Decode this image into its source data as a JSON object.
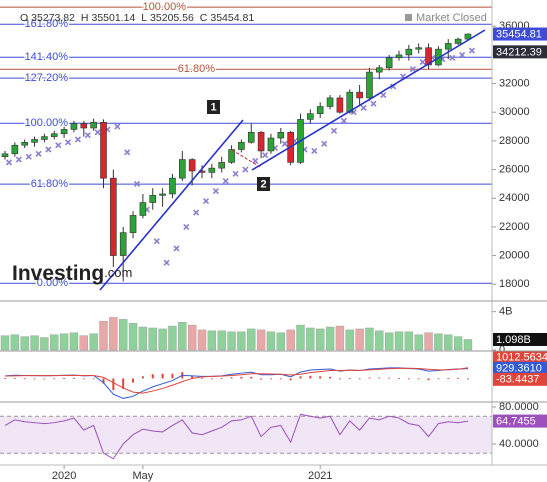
{
  "chart_data": [
    {
      "type": "candlestick",
      "ohlc_labels": [
        "O",
        "H",
        "L",
        "C"
      ],
      "ohlc": [
        35273.82,
        35501.14,
        35205.56,
        35454.81
      ],
      "status": "Market Closed",
      "watermark": [
        "Investing",
        ".com"
      ],
      "categories": [
        null,
        null,
        null,
        null,
        null,
        null,
        "2020",
        null,
        null,
        null,
        null,
        null,
        null,
        null,
        "May",
        null,
        null,
        null,
        null,
        null,
        null,
        null,
        null,
        null,
        null,
        null,
        null,
        null,
        null,
        null,
        null,
        null,
        "2021",
        null,
        null,
        null,
        null,
        null,
        null,
        null,
        null,
        null,
        null,
        null,
        null,
        null,
        null,
        null
      ],
      "open": [
        26900,
        27100,
        27700,
        27900,
        28100,
        28300,
        28500,
        28800,
        29200,
        28900,
        29300,
        25400,
        20000,
        21600,
        22800,
        23700,
        24200,
        24300,
        25400,
        26700,
        25900,
        25800,
        26100,
        26500,
        27400,
        27900,
        28600,
        27300,
        28200,
        28600,
        26500,
        29500,
        29900,
        30400,
        31000,
        30000,
        31400,
        31000,
        32800,
        33100,
        33800,
        34000,
        34400,
        34500,
        33300,
        34400,
        34800,
        35100
      ],
      "high": [
        27300,
        27900,
        28100,
        28300,
        28500,
        28700,
        29000,
        29400,
        29400,
        29550,
        29500,
        26000,
        22000,
        23100,
        24300,
        24700,
        24700,
        25700,
        27300,
        26800,
        26300,
        26400,
        26900,
        27700,
        28100,
        29200,
        28700,
        28500,
        28900,
        28700,
        29900,
        30200,
        30700,
        31200,
        31200,
        31600,
        31900,
        33100,
        33300,
        34000,
        34300,
        34700,
        34800,
        34800,
        34600,
        35100,
        35200,
        35501.14
      ],
      "low": [
        26700,
        26900,
        27500,
        27600,
        27900,
        28100,
        28200,
        28600,
        28300,
        28700,
        24700,
        19200,
        18200,
        21200,
        22600,
        23200,
        23400,
        24000,
        25200,
        24900,
        25400,
        25400,
        25800,
        26400,
        27200,
        27800,
        26800,
        27100,
        27800,
        26300,
        26400,
        29200,
        29600,
        30200,
        29900,
        29900,
        30500,
        30800,
        32300,
        32900,
        33600,
        33600,
        34100,
        33000,
        33200,
        33700,
        34700,
        35000
      ],
      "close": [
        27100,
        27700,
        27900,
        28100,
        28300,
        28500,
        28800,
        29200,
        28900,
        29300,
        25400,
        20000,
        21600,
        22800,
        23700,
        24200,
        24300,
        25400,
        26700,
        25900,
        25800,
        26100,
        26500,
        27400,
        27900,
        28600,
        27300,
        28200,
        28600,
        26500,
        29500,
        29900,
        30400,
        31000,
        30000,
        31400,
        31000,
        32800,
        33100,
        33800,
        34000,
        34400,
        34500,
        33300,
        34400,
        34800,
        35100,
        35454.81
      ],
      "up_color": "#2ba338",
      "down_color": "#d8262f",
      "overlay": {
        "color": "#8a7fd0",
        "values": [
          26500,
          26700,
          26900,
          27100,
          27400,
          27700,
          27900,
          28100,
          28400,
          28600,
          28800,
          29000,
          27200,
          25000,
          23200,
          21000,
          19500,
          20500,
          22000,
          23000,
          23800,
          24500,
          25200,
          25700,
          26000,
          26600,
          27000,
          27500,
          27800,
          28000,
          27400,
          27300,
          27800,
          28700,
          29400,
          30000,
          30300,
          30600,
          31200,
          31800,
          32500,
          33000,
          33500,
          33800,
          33700,
          33800,
          34000,
          34300
        ]
      },
      "levels": [
        {
          "label": "100.00%",
          "value": 37330,
          "color": "#b5523b"
        },
        {
          "label": "161.80%",
          "value": 36140,
          "color": "#3d4bd8"
        },
        {
          "label": "141.40%",
          "value": 33840,
          "color": "#3d4bd8"
        },
        {
          "label": "61.80%",
          "value": 33000,
          "color": "#b5523b"
        },
        {
          "label": "127.20%",
          "value": 32380,
          "color": "#3d4bd8"
        },
        {
          "label": "100.00%",
          "value": 29235,
          "color": "#3d4bd8"
        },
        {
          "label": "61.80%",
          "value": 24980,
          "color": "#3d4bd8"
        },
        {
          "label": "0.00%",
          "value": 18070,
          "color": "#3d4bd8"
        }
      ],
      "annotations": [
        "1",
        "2"
      ],
      "price_tags": [
        {
          "value": 35454.81,
          "color": "#3d4bd8"
        },
        {
          "value": 34212.39,
          "color": "#2a2e39"
        }
      ],
      "ylim": [
        16900,
        37830
      ],
      "yticks": [
        18000,
        20000,
        22000,
        24000,
        26000,
        28000,
        30000,
        32000,
        34000,
        36000
      ]
    },
    {
      "type": "bar",
      "color": "#e9a8a8",
      "up_color": "#8fd19a",
      "values": [
        1.5,
        1.6,
        1.4,
        1.5,
        1.3,
        1.6,
        1.7,
        1.8,
        1.5,
        1.7,
        3.0,
        3.4,
        3.2,
        2.8,
        2.4,
        2.3,
        2.2,
        2.5,
        2.9,
        2.6,
        2.1,
        2.0,
        2.0,
        1.9,
        1.9,
        2.2,
        2.1,
        1.9,
        1.8,
        2.1,
        2.6,
        2.3,
        2.2,
        2.4,
        2.5,
        2.1,
        2.2,
        2.3,
        2.0,
        1.8,
        1.9,
        1.9,
        1.6,
        1.8,
        1.7,
        1.6,
        1.4,
        1.098
      ],
      "ylim": [
        0,
        4.8
      ],
      "yticks": [
        0,
        {
          "value": 4,
          "label": "4B"
        }
      ],
      "tag": {
        "value": 1.098,
        "label": "1.098B"
      }
    },
    {
      "type": "macd",
      "series": [
        {
          "color": "#2f5bd6",
          "values": [
            250,
            300,
            280,
            270,
            260,
            270,
            300,
            320,
            250,
            280,
            -400,
            -1500,
            -1900,
            -1700,
            -1200,
            -800,
            -500,
            -200,
            300,
            250,
            200,
            200,
            250,
            400,
            500,
            600,
            350,
            350,
            400,
            150,
            600,
            800,
            850,
            900,
            700,
            800,
            750,
            900,
            950,
            1000,
            1000,
            950,
            900,
            700,
            750,
            850,
            900,
            929.361
          ]
        },
        {
          "color": "#e0443a",
          "values": [
            230,
            250,
            270,
            270,
            265,
            265,
            275,
            290,
            280,
            275,
            100,
            -400,
            -900,
            -1300,
            -1400,
            -1200,
            -950,
            -650,
            -300,
            0,
            150,
            200,
            220,
            280,
            350,
            450,
            450,
            420,
            400,
            330,
            400,
            550,
            650,
            750,
            750,
            780,
            770,
            820,
            870,
            930,
            960,
            970,
            950,
            870,
            820,
            830,
            870,
            1012.5634
          ]
        }
      ],
      "histogram": {
        "color": "#e0443a",
        "values": [
          20,
          50,
          10,
          0,
          -5,
          5,
          25,
          30,
          -30,
          5,
          -500,
          -1100,
          -1000,
          -400,
          200,
          400,
          450,
          450,
          600,
          250,
          50,
          0,
          30,
          120,
          150,
          150,
          -100,
          -70,
          0,
          -180,
          200,
          250,
          200,
          150,
          -50,
          20,
          -20,
          80,
          80,
          70,
          40,
          -20,
          -50,
          -170,
          -70,
          20,
          30,
          -83.4437
        ]
      },
      "tags": [
        {
          "value": 1012.5634,
          "color": "#e0443a"
        },
        {
          "value": 929.361,
          "label": "929.3610",
          "color": "#2f5bd6"
        },
        {
          "value": -83.4437,
          "color": "#e0443a"
        }
      ],
      "ylim": [
        -2050,
        2420
      ]
    },
    {
      "type": "line",
      "series": [
        {
          "color": "#9c4fbf",
          "values": [
            60,
            66,
            64,
            63,
            62,
            63,
            65,
            68,
            55,
            60,
            30,
            24,
            40,
            50,
            56,
            54,
            53,
            60,
            66,
            52,
            50,
            54,
            58,
            65,
            66,
            70,
            48,
            58,
            60,
            42,
            72,
            70,
            68,
            70,
            50,
            65,
            55,
            68,
            66,
            70,
            68,
            62,
            60,
            48,
            62,
            64,
            63,
            64.7455
          ]
        }
      ],
      "ylim": [
        20.5,
        83.2
      ],
      "yticks": [
        {
          "value": 80,
          "label": "80.0000"
        },
        {
          "value": 40,
          "label": "40.0000"
        }
      ],
      "bands": [
        70,
        30
      ],
      "band_color": "#f1e6f6",
      "tag": {
        "value": 64.7455,
        "color": "#9c4fbf"
      }
    }
  ]
}
